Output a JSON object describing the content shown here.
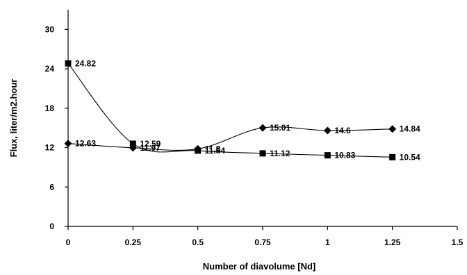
{
  "chart_data": {
    "type": "line",
    "xlabel": "Number of diavolume [Nd]",
    "ylabel": "Flux, liter/m2.hour",
    "xlim": [
      0,
      1.5
    ],
    "ylim": [
      0,
      33
    ],
    "xticks": [
      "0",
      "0.25",
      "0.5",
      "0.75",
      "1",
      "1.25",
      "1.5"
    ],
    "xtick_values": [
      0,
      0.25,
      0.5,
      0.75,
      1,
      1.25,
      1.5
    ],
    "yticks": [
      "0",
      "6",
      "12",
      "18",
      "24",
      "30"
    ],
    "ytick_values": [
      0,
      6,
      12,
      18,
      24,
      30
    ],
    "grid": false,
    "legend": "none",
    "series": [
      {
        "marker": "square",
        "x": [
          0,
          0.25,
          0.5,
          0.75,
          1,
          1.25
        ],
        "y": [
          24.82,
          12.59,
          11.54,
          11.12,
          10.83,
          10.54
        ],
        "labels": [
          "24.82",
          "12.59",
          "11.54",
          "11.12",
          "10.83",
          "10.54"
        ]
      },
      {
        "marker": "diamond",
        "x": [
          0,
          0.25,
          0.5,
          0.75,
          1,
          1.25
        ],
        "y": [
          12.63,
          11.97,
          11.8,
          15.01,
          14.6,
          14.84
        ],
        "labels": [
          "12.63",
          "11.97",
          "11.8",
          "15.01",
          "14.6",
          "14.84"
        ]
      }
    ]
  }
}
